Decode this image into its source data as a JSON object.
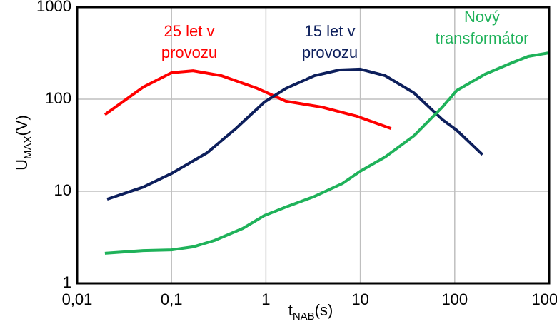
{
  "chart_data": {
    "type": "line",
    "xlabel": {
      "main": "t",
      "sub": "NAB",
      "unit": "(s)"
    },
    "ylabel": {
      "main": "U",
      "sub": "MAX",
      "unit": "(V)"
    },
    "xscale": "log",
    "yscale": "log",
    "grid": true,
    "xlim": [
      0.01,
      1000
    ],
    "ylim": [
      1,
      1000
    ],
    "xticks": [
      {
        "value": 0.01,
        "label": "0,01"
      },
      {
        "value": 0.1,
        "label": "0,1"
      },
      1,
      10,
      100,
      1000
    ],
    "yticks": [
      1,
      10,
      100,
      1000
    ],
    "series": [
      {
        "name": [
          "25 let v",
          "provozu"
        ],
        "color": "#ff0000",
        "x": [
          0.0197,
          0.05,
          0.1,
          0.169,
          0.339,
          0.81,
          1.63,
          3.9,
          9.3,
          21.2
        ],
        "values": [
          68,
          135,
          194,
          204,
          180,
          131,
          95,
          82,
          65,
          48
        ]
      },
      {
        "name": [
          "15 let v",
          "provozu"
        ],
        "color": "#0d1f5c",
        "x": [
          0.0208,
          0.05,
          0.1,
          0.239,
          0.48,
          0.963,
          1.63,
          3.27,
          6.0,
          10,
          18.4,
          37,
          74,
          105,
          197
        ],
        "values": [
          8.2,
          11.1,
          15.6,
          26.2,
          48,
          93,
          131,
          180,
          208,
          212,
          180,
          117,
          60,
          46,
          25
        ]
      },
      {
        "name": [
          "Nový",
          "transformátor"
        ],
        "color": "#1fb25a",
        "x": [
          0.0197,
          0.05,
          0.1,
          0.169,
          0.284,
          0.57,
          0.963,
          1.63,
          3.27,
          6.5,
          10,
          18.4,
          37,
          74,
          105,
          210,
          420,
          600,
          1000
        ],
        "values": [
          2.12,
          2.27,
          2.31,
          2.49,
          2.92,
          3.95,
          5.45,
          6.75,
          8.8,
          12.2,
          16.5,
          23.6,
          40,
          82,
          124,
          187,
          253,
          292,
          319
        ]
      }
    ]
  }
}
